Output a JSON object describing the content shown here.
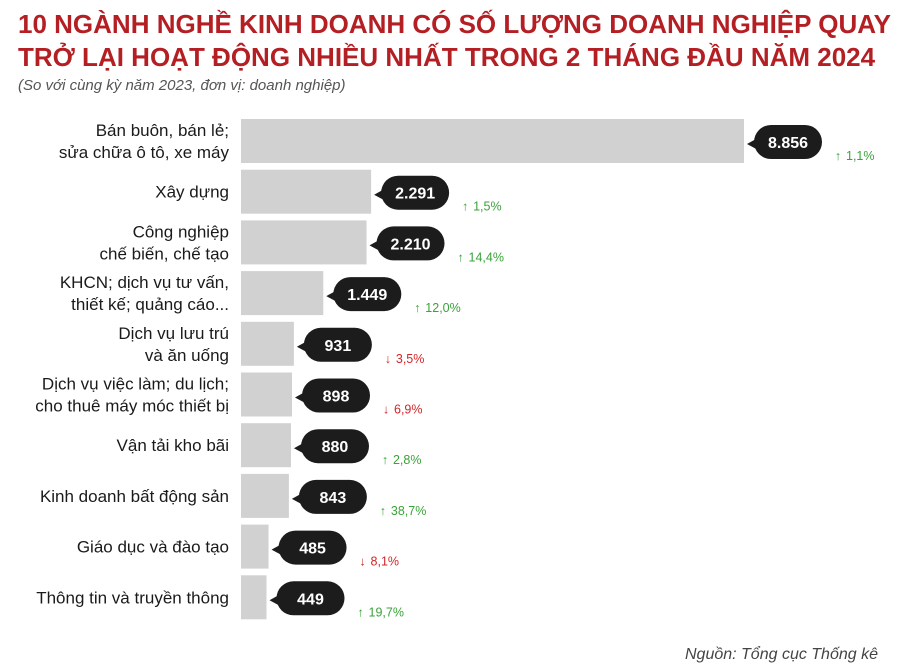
{
  "title": "10 NGÀNH NGHỀ KINH DOANH CÓ SỐ LƯỢNG DOANH NGHIỆP QUAY TRỞ LẠI HOẠT ĐỘNG NHIỀU NHẤT TRONG 2 THÁNG ĐẦU NĂM 2024",
  "subtitle": "(So với cùng kỳ năm 2023, đơn vị: doanh nghiệp)",
  "source": "Nguồn: Tổng cục Thống kê",
  "colors": {
    "title": "#b41f24",
    "bar": "#d1d1d1",
    "bubble": "#1c1c1c",
    "up": "#3aa33a",
    "down": "#d0262a"
  },
  "chart_data": {
    "type": "bar",
    "orientation": "horizontal",
    "categories": [
      [
        "Bán buôn, bán lẻ;",
        "sửa chữa ô tô, xe máy"
      ],
      [
        "Xây dựng"
      ],
      [
        "Công nghiệp",
        "chế biến, chế tạo"
      ],
      [
        "KHCN; dịch vụ tư vấn,",
        "thiết kế; quảng cáo..."
      ],
      [
        "Dịch vụ lưu trú",
        "và ăn uống"
      ],
      [
        "Dịch vụ việc làm; du lịch;",
        "cho thuê máy móc thiết bị"
      ],
      [
        "Vận tải kho bãi"
      ],
      [
        "Kinh doanh bất động sản"
      ],
      [
        "Giáo dục và đào tạo"
      ],
      [
        "Thông tin và truyền thông"
      ]
    ],
    "values": [
      8856,
      2291,
      2210,
      1449,
      931,
      898,
      880,
      843,
      485,
      449
    ],
    "value_labels": [
      "8.856",
      "2.291",
      "2.210",
      "1.449",
      "931",
      "898",
      "880",
      "843",
      "485",
      "449"
    ],
    "changes": [
      "1,1%",
      "1,5%",
      "14,4%",
      "12,0%",
      "3,5%",
      "6,9%",
      "2,8%",
      "38,7%",
      "8,1%",
      "19,7%"
    ],
    "change_direction": [
      "up",
      "up",
      "up",
      "up",
      "down",
      "down",
      "up",
      "up",
      "down",
      "up"
    ],
    "xlim": [
      0,
      8856
    ],
    "grid": false,
    "legend": "none"
  }
}
